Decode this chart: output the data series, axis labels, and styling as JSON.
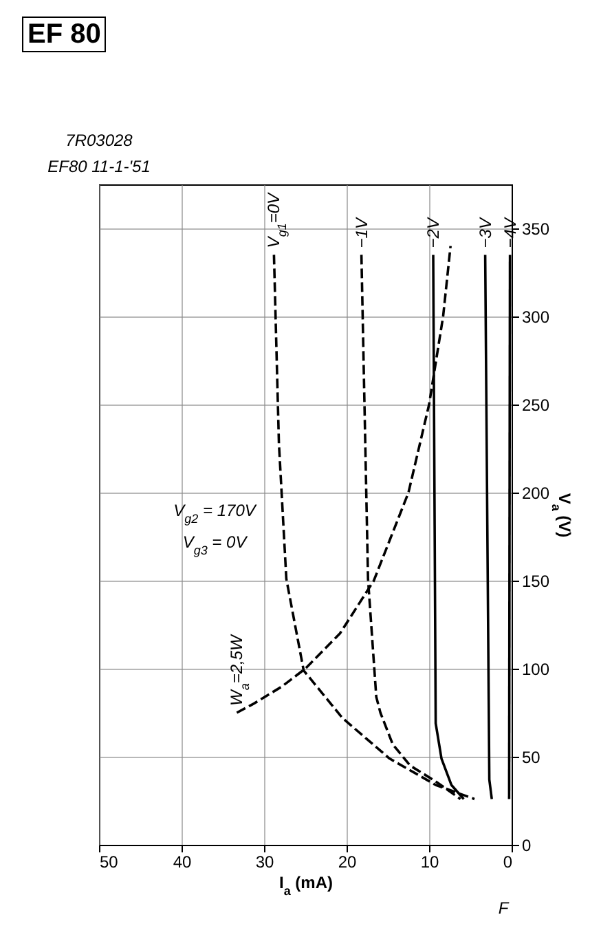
{
  "chart_data": {
    "type": "line",
    "title": "EF 80",
    "xlabel": "I$_{a}$ (mA)",
    "ylabel": "V$_{a}$ (V)",
    "xlim": [
      50,
      0
    ],
    "xticks": [
      0,
      10,
      20,
      30,
      40,
      50
    ],
    "ylim": [
      0,
      375
    ],
    "yticks": [
      0,
      50,
      100,
      150,
      200,
      250,
      300,
      350
    ],
    "grid": true,
    "legend": false,
    "series": [
      {
        "name": "V$_{g1}$=0V",
        "color": "#000000",
        "line_style": "dashed",
        "x": [
          28.8,
          28.2,
          27.3,
          25.2,
          20.5,
          14.8,
          9.2,
          4.5
        ],
        "values": [
          335,
          228,
          151,
          99,
          72,
          49,
          34,
          26
        ]
      },
      {
        "name": "−1V",
        "color": "#000000",
        "line_style": "dashed",
        "x": [
          18.2,
          17.4,
          16.4,
          15.9,
          14.4,
          12.3,
          9.2,
          6.2
        ],
        "values": [
          335,
          151,
          84,
          75,
          57,
          45,
          36,
          26
        ]
      },
      {
        "name": "−2V",
        "color": "#000000",
        "line_style": "solid",
        "x": [
          9.5,
          9.2,
          8.5,
          7.3,
          5.8
        ],
        "values": [
          335,
          69,
          49,
          34,
          26
        ]
      },
      {
        "name": "−3V",
        "color": "#000000",
        "line_style": "solid",
        "x": [
          3.2,
          2.7,
          2.4
        ],
        "values": [
          335,
          37,
          26
        ]
      },
      {
        "name": "−4V",
        "color": "#000000",
        "line_style": "solid",
        "x": [
          0.2,
          0.3
        ],
        "values": [
          335,
          26
        ]
      },
      {
        "name": "W$_{a}$=2,5W",
        "color": "#000000",
        "line_style": "dashed",
        "x": [
          33.3,
          31.3,
          27.8,
          25,
          20.8,
          16.7,
          12.5,
          10,
          8.3,
          7.4
        ],
        "values": [
          75,
          80,
          90,
          100,
          120,
          150,
          200,
          250,
          300,
          340
        ]
      }
    ],
    "annotations": [
      "V$_{g2}$ = 170V",
      "V$_{g3}$ = 0V",
      "7R03028",
      "EF80 11-1-'51",
      "F"
    ]
  }
}
